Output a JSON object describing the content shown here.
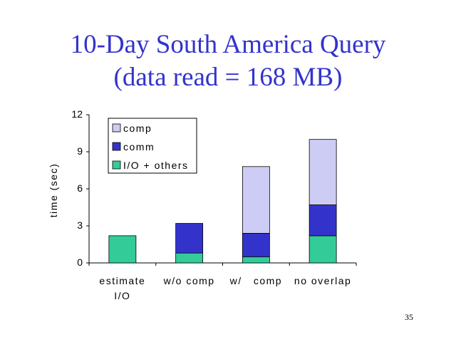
{
  "slide": {
    "title_line1": "10-Day South America Query",
    "title_line2": "(data read = 168 MB)",
    "page_number": "35"
  },
  "chart_data": {
    "type": "bar",
    "stacked": true,
    "title": "",
    "xlabel": "",
    "ylabel": "time (sec)",
    "ylim": [
      0,
      12
    ],
    "yticks": [
      0,
      3,
      6,
      9,
      12
    ],
    "grid": false,
    "legend_position": "top-left",
    "categories": [
      [
        "estimate",
        "I/O"
      ],
      [
        "w/o comp"
      ],
      [
        "w/   comp"
      ],
      [
        "no overlap"
      ]
    ],
    "series": [
      {
        "name": "I/O + others",
        "color": "#33cc99",
        "values": [
          2.2,
          0.8,
          0.5,
          2.2
        ]
      },
      {
        "name": "comm",
        "color": "#3333cc",
        "values": [
          0,
          2.4,
          1.9,
          2.5
        ]
      },
      {
        "name": "comp",
        "color": "#ccccf5",
        "values": [
          0,
          0,
          5.4,
          5.3
        ]
      }
    ],
    "legend_order": [
      "comp",
      "comm",
      "I/O + others"
    ]
  }
}
